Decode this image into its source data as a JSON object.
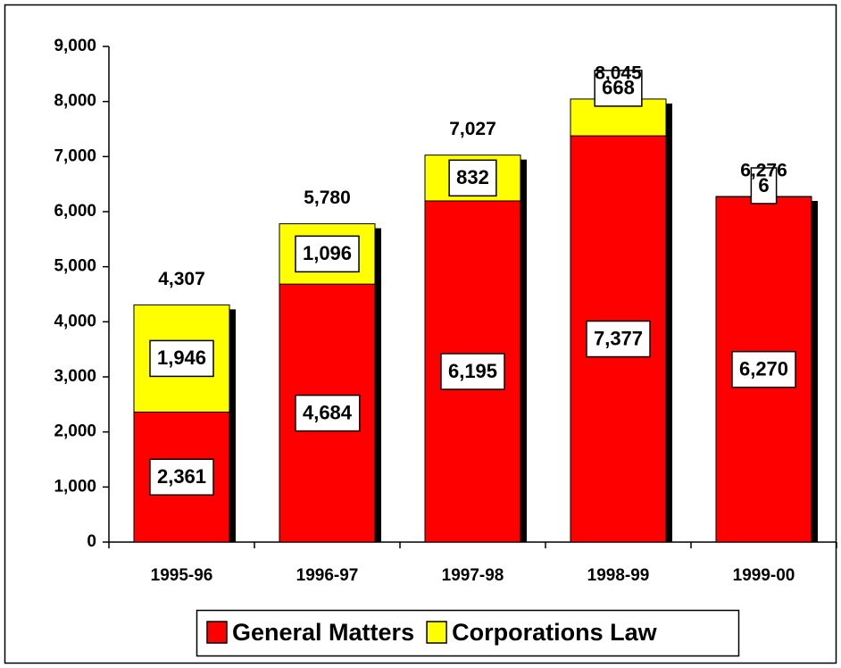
{
  "chart_data": {
    "type": "stacked_bar",
    "categories": [
      "1995-96",
      "1996-97",
      "1997-98",
      "1998-99",
      "1999-00"
    ],
    "series": [
      {
        "name": "General Matters",
        "color": "#ff0000",
        "values": [
          2361,
          4684,
          6195,
          7377,
          6270
        ],
        "value_labels": [
          "2,361",
          "4,684",
          "6,195",
          "7,377",
          "6,270"
        ]
      },
      {
        "name": "Corporations Law",
        "color": "#ffff00",
        "values": [
          1946,
          1096,
          832,
          668,
          6
        ],
        "value_labels": [
          "1,946",
          "1,096",
          "832",
          "668",
          "6"
        ]
      }
    ],
    "totals": [
      4307,
      5780,
      7027,
      8045,
      6276
    ],
    "total_labels": [
      "4,307",
      "5,780",
      "7,027",
      "8,045",
      "6,276"
    ],
    "ylim": [
      0,
      9000
    ],
    "yticks": [
      0,
      {
        "value": 1000,
        "label": "1,000"
      },
      {
        "value": 2000,
        "label": "2,000"
      },
      {
        "value": 3000,
        "label": "3,000"
      },
      {
        "value": 4000,
        "label": "4,000"
      },
      {
        "value": 5000,
        "label": "5,000"
      },
      {
        "value": 6000,
        "label": "6,000"
      },
      {
        "value": 7000,
        "label": "7,000"
      },
      {
        "value": 8000,
        "label": "8,000"
      },
      {
        "value": 9000,
        "label": "9,000"
      }
    ],
    "legend": "bottom"
  }
}
